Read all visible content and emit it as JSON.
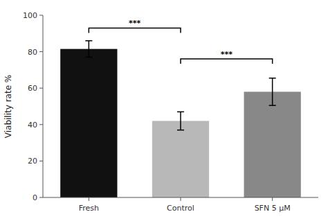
{
  "chart_data": {
    "type": "bar",
    "categories": [
      "Fresh",
      "Control",
      "SFN 5 μM"
    ],
    "values": [
      81.5,
      42.0,
      58.0
    ],
    "errors": [
      4.5,
      5.0,
      7.5
    ],
    "colors": [
      "#111111",
      "#b8b8b8",
      "#888888"
    ],
    "ylabel": "Viability rate %",
    "ylim": [
      0,
      100
    ],
    "yticks": [
      0,
      20,
      40,
      60,
      80,
      100
    ],
    "grid": false,
    "annotations": [
      {
        "label": "***",
        "x1": "Fresh",
        "x2": "Control",
        "y": 93
      },
      {
        "label": "***",
        "x1": "Control",
        "x2": "SFN 5 μM",
        "y": 76
      }
    ]
  }
}
